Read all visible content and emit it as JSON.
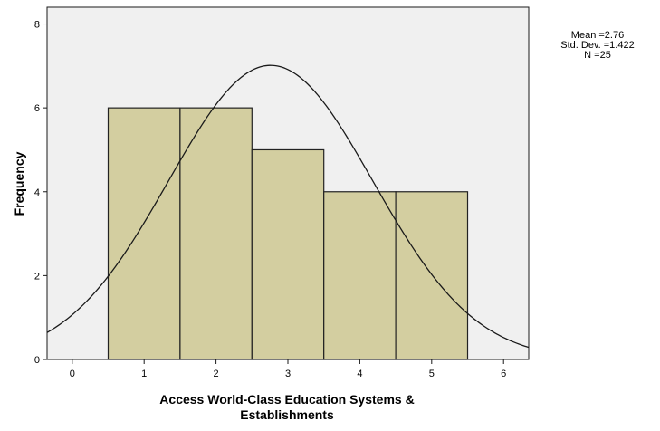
{
  "chart_data": {
    "type": "bar",
    "subtype": "histogram-with-normal-curve",
    "title": "",
    "xlabel_lines": [
      "Access World-Class Education Systems &",
      "Establishments"
    ],
    "ylabel": "Frequency",
    "bins": [
      {
        "from": 0.5,
        "to": 1.5,
        "count": 6
      },
      {
        "from": 1.5,
        "to": 2.5,
        "count": 6
      },
      {
        "from": 2.5,
        "to": 3.5,
        "count": 5
      },
      {
        "from": 3.5,
        "to": 4.5,
        "count": 4
      },
      {
        "from": 4.5,
        "to": 5.5,
        "count": 4
      }
    ],
    "xlim": [
      -0.35,
      6.35
    ],
    "ylim": [
      0,
      8.4
    ],
    "x_ticks": [
      "0",
      "1",
      "2",
      "3",
      "4",
      "5",
      "6"
    ],
    "y_ticks": [
      "0",
      "2",
      "4",
      "6",
      "8"
    ],
    "normal_curve": {
      "mean": 2.76,
      "sd": 1.422,
      "n": 25,
      "bin_width": 1
    },
    "stats": {
      "mean_label": "Mean =2.76",
      "sd_label": "Std. Dev. =1.422",
      "n_label": "N =25"
    },
    "grid": false,
    "colors": {
      "bar_fill": "#d3cea0",
      "bar_stroke": "#222222",
      "plot_background": "#f0f0f0",
      "curve": "#1a1a1a"
    }
  }
}
